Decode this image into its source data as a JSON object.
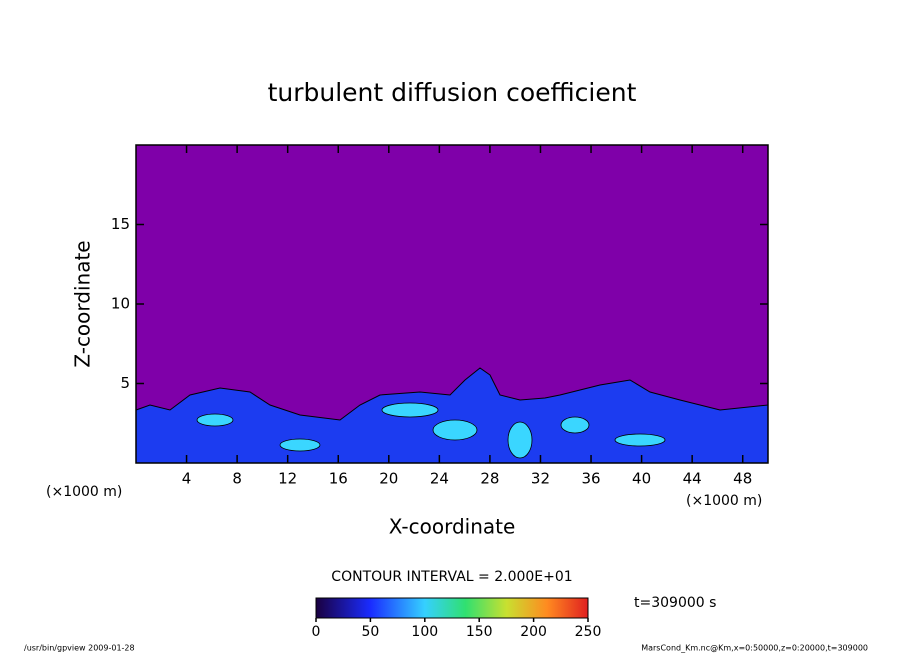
{
  "chart_data": {
    "type": "contour",
    "title": "turbulent diffusion coefficient",
    "x_label": "X-coordinate",
    "y_label": "Z-coordinate",
    "xunit": "(×1000 m)",
    "yunit": "(×1000 m)",
    "xlim": [
      0,
      50
    ],
    "xticks": [
      4,
      8,
      12,
      16,
      20,
      24,
      28,
      32,
      36,
      40,
      44,
      48
    ],
    "ylim": [
      0,
      20
    ],
    "yticks": [
      5,
      10,
      15
    ],
    "contour_interval": "CONTOUR INTERVAL = 2.000E+01",
    "time": "t=309000 s",
    "colorbar": {
      "lim": [
        0,
        250
      ],
      "ticks": [
        0,
        50,
        100,
        150,
        200,
        250
      ]
    },
    "footer_left": "/usr/bin/gpview   2009-01-28",
    "footer_right": "MarsCond_Km.nc@Km,x=0:50000,z=0:20000,t=309000"
  }
}
